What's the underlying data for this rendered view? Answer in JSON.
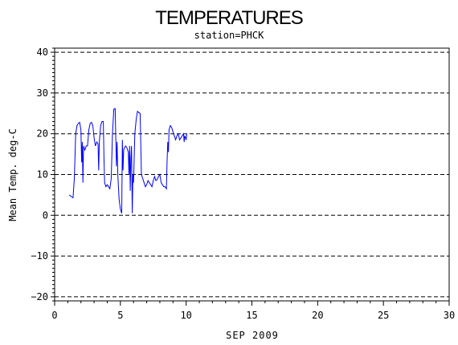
{
  "chart_data": {
    "type": "line",
    "title": "TEMPERATURES",
    "subtitle": "station=PHCK",
    "xlabel": "SEP 2009",
    "ylabel": "Mean Temp. deg-C",
    "xlim": [
      0,
      30
    ],
    "ylim": [
      -21,
      41
    ],
    "xticks": [
      0,
      5,
      10,
      15,
      20,
      25,
      30
    ],
    "yticks": [
      -20,
      -10,
      0,
      10,
      20,
      30,
      40
    ],
    "grid": "horizontal dashed",
    "series": [
      {
        "color": "#0000ff",
        "points": [
          [
            1.1,
            5
          ],
          [
            1.3,
            4.5
          ],
          [
            1.4,
            4.3
          ],
          [
            1.5,
            9
          ],
          [
            1.6,
            20
          ],
          [
            1.7,
            22
          ],
          [
            1.8,
            22.5
          ],
          [
            1.9,
            22.8
          ],
          [
            2.0,
            21
          ],
          [
            2.05,
            13
          ],
          [
            2.1,
            18
          ],
          [
            2.15,
            8
          ],
          [
            2.2,
            17
          ],
          [
            2.3,
            16
          ],
          [
            2.4,
            17
          ],
          [
            2.5,
            17
          ],
          [
            2.6,
            21
          ],
          [
            2.7,
            22.5
          ],
          [
            2.8,
            22.8
          ],
          [
            2.9,
            22
          ],
          [
            3.0,
            19
          ],
          [
            3.1,
            17
          ],
          [
            3.2,
            18
          ],
          [
            3.3,
            17.5
          ],
          [
            3.35,
            11
          ],
          [
            3.4,
            18
          ],
          [
            3.5,
            22
          ],
          [
            3.6,
            23
          ],
          [
            3.7,
            23
          ],
          [
            3.75,
            14
          ],
          [
            3.8,
            8
          ],
          [
            3.9,
            7
          ],
          [
            4.0,
            7.5
          ],
          [
            4.1,
            7
          ],
          [
            4.2,
            6.5
          ],
          [
            4.3,
            9
          ],
          [
            4.4,
            20
          ],
          [
            4.5,
            26
          ],
          [
            4.6,
            26.2
          ],
          [
            4.7,
            12
          ],
          [
            4.75,
            18
          ],
          [
            4.8,
            10
          ],
          [
            4.9,
            4
          ],
          [
            5.0,
            1.5
          ],
          [
            5.1,
            0.5
          ],
          [
            5.15,
            18.5
          ],
          [
            5.2,
            11
          ],
          [
            5.25,
            16
          ],
          [
            5.3,
            16.5
          ],
          [
            5.4,
            17
          ],
          [
            5.5,
            16.5
          ],
          [
            5.6,
            15.5
          ],
          [
            5.65,
            10
          ],
          [
            5.7,
            17
          ],
          [
            5.75,
            6
          ],
          [
            5.8,
            14
          ],
          [
            5.85,
            17
          ],
          [
            5.9,
            0.5
          ],
          [
            5.95,
            10
          ],
          [
            6.0,
            8
          ],
          [
            6.1,
            20
          ],
          [
            6.2,
            23.5
          ],
          [
            6.3,
            25.5
          ],
          [
            6.4,
            25.2
          ],
          [
            6.5,
            25
          ],
          [
            6.6,
            10
          ],
          [
            6.7,
            9
          ],
          [
            6.8,
            8
          ],
          [
            6.9,
            7
          ],
          [
            7.0,
            7.5
          ],
          [
            7.1,
            8.5
          ],
          [
            7.2,
            8
          ],
          [
            7.3,
            7.5
          ],
          [
            7.4,
            7
          ],
          [
            7.5,
            8.5
          ],
          [
            7.6,
            9.5
          ],
          [
            7.7,
            8.5
          ],
          [
            7.8,
            8.8
          ],
          [
            7.9,
            9.5
          ],
          [
            8.0,
            10
          ],
          [
            8.1,
            8
          ],
          [
            8.2,
            7.5
          ],
          [
            8.3,
            7
          ],
          [
            8.4,
            7
          ],
          [
            8.5,
            6.5
          ],
          [
            8.55,
            13
          ],
          [
            8.6,
            18
          ],
          [
            8.65,
            15.5
          ],
          [
            8.7,
            21
          ],
          [
            8.8,
            22
          ],
          [
            8.9,
            21.5
          ],
          [
            9.0,
            20.5
          ],
          [
            9.1,
            19.5
          ],
          [
            9.2,
            18.5
          ],
          [
            9.3,
            19.5
          ],
          [
            9.4,
            20
          ],
          [
            9.5,
            18.5
          ],
          [
            9.6,
            19
          ],
          [
            9.7,
            19.5
          ],
          [
            9.8,
            20
          ],
          [
            9.85,
            18
          ],
          [
            9.9,
            19.5
          ],
          [
            10.0,
            18.5
          ],
          [
            10.05,
            20
          ]
        ]
      }
    ]
  }
}
